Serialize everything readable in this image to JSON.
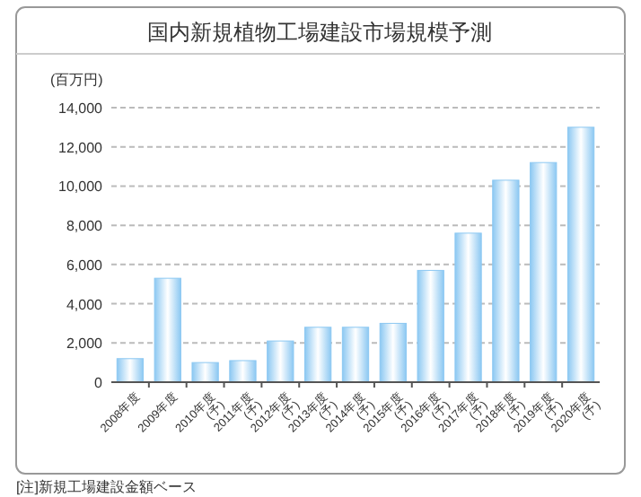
{
  "chart_data": {
    "type": "bar",
    "title": "国内新規植物工場建設市場規模予測",
    "ylabel": "(百万円)",
    "categories": [
      "2008年度",
      "2009年度",
      "2010年度\n(予)",
      "2011年度\n(予)",
      "2012年度\n(予)",
      "2013年度\n(予)",
      "2014年度\n(予)",
      "2015年度\n(予)",
      "2016年度\n(予)",
      "2017年度\n(予)",
      "2018年度\n(予)",
      "2019年度\n(予)",
      "2020年度\n(予)"
    ],
    "values": [
      1200,
      5300,
      1000,
      1100,
      2100,
      2800,
      2800,
      3000,
      5700,
      7600,
      10300,
      11200,
      13000
    ],
    "color": "#8cc8f2",
    "ylim": [
      0,
      14000
    ],
    "yticks": [
      {
        "value": 0,
        "label": "0"
      },
      {
        "value": 2000,
        "label": "2,000"
      },
      {
        "value": 4000,
        "label": "4,000"
      },
      {
        "value": 6000,
        "label": "6,000"
      },
      {
        "value": 8000,
        "label": "8,000"
      },
      {
        "value": 10000,
        "label": "10,000"
      },
      {
        "value": 12000,
        "label": "12,000"
      },
      {
        "value": 14000,
        "label": "14,000"
      }
    ],
    "grid": "y",
    "annotations": [
      "[注]新規工場建設金額ベース"
    ]
  }
}
